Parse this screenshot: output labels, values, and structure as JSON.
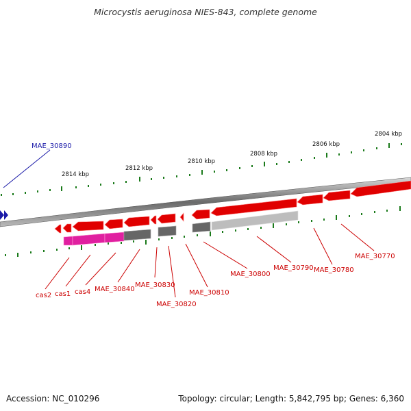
{
  "title": "Microcystis aeruginosa NIES-843, complete genome",
  "footer": {
    "accession": "Accession: NC_010296",
    "summary": "Topology: circular; Length: 5,842,795 bp; Genes: 6,360"
  },
  "colors": {
    "forward_gene": "#e00000",
    "crispr_cas": "#e020a0",
    "pseudogene_dark": "#666666",
    "pseudogene_light": "#bdbdbd",
    "highlight_gene": "#1a1aa8",
    "tick": "#1a7a1a",
    "label_red": "#cc0000"
  },
  "coordinates": [
    "2814 kbp",
    "2812 kbp",
    "2810 kbp",
    "2808 kbp",
    "2806 kbp",
    "2804 kbp"
  ],
  "gene_labels": [
    {
      "name": "MAE_30890",
      "color": "blue"
    },
    {
      "name": "cas2"
    },
    {
      "name": "cas1"
    },
    {
      "name": "cas4"
    },
    {
      "name": "MAE_30840"
    },
    {
      "name": "MAE_30830"
    },
    {
      "name": "MAE_30820"
    },
    {
      "name": "MAE_30810"
    },
    {
      "name": "MAE_30800"
    },
    {
      "name": "MAE_30790"
    },
    {
      "name": "MAE_30780"
    },
    {
      "name": "MAE_30770"
    }
  ]
}
